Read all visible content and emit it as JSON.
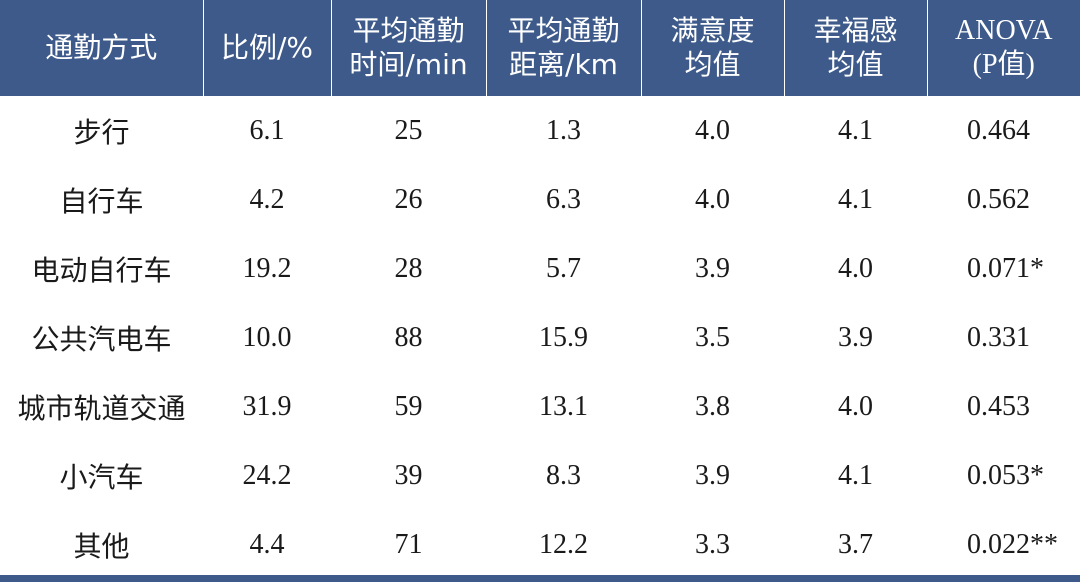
{
  "table": {
    "headers": [
      {
        "line1": "通勤方式",
        "line2": ""
      },
      {
        "line1": "比例/%",
        "line2": ""
      },
      {
        "line1": "平均通勤",
        "line2": "时间/min"
      },
      {
        "line1": "平均通勤",
        "line2": "距离/km"
      },
      {
        "line1": "满意度",
        "line2": "均值"
      },
      {
        "line1": "幸福感",
        "line2": "均值"
      },
      {
        "line1": "ANOVA",
        "line2": "(P值)"
      }
    ],
    "rows": [
      {
        "mode": "步行",
        "ratio": "6.1",
        "time": "25",
        "distance": "1.3",
        "satisfaction": "4.0",
        "happiness": "4.1",
        "anova": "0.464"
      },
      {
        "mode": "自行车",
        "ratio": "4.2",
        "time": "26",
        "distance": "6.3",
        "satisfaction": "4.0",
        "happiness": "4.1",
        "anova": "0.562"
      },
      {
        "mode": "电动自行车",
        "ratio": "19.2",
        "time": "28",
        "distance": "5.7",
        "satisfaction": "3.9",
        "happiness": "4.0",
        "anova": "0.071*"
      },
      {
        "mode": "公共汽电车",
        "ratio": "10.0",
        "time": "88",
        "distance": "15.9",
        "satisfaction": "3.5",
        "happiness": "3.9",
        "anova": "0.331"
      },
      {
        "mode": "城市轨道交通",
        "ratio": "31.9",
        "time": "59",
        "distance": "13.1",
        "satisfaction": "3.8",
        "happiness": "4.0",
        "anova": "0.453"
      },
      {
        "mode": "小汽车",
        "ratio": "24.2",
        "time": "39",
        "distance": "8.3",
        "satisfaction": "3.9",
        "happiness": "4.1",
        "anova": "0.053*"
      },
      {
        "mode": "其他",
        "ratio": "4.4",
        "time": "71",
        "distance": "12.2",
        "satisfaction": "3.3",
        "happiness": "3.7",
        "anova": "0.022**"
      }
    ]
  },
  "colors": {
    "header_bg": "#3d5a8a",
    "header_text": "#ffffff",
    "body_text": "#1a1a1a"
  }
}
